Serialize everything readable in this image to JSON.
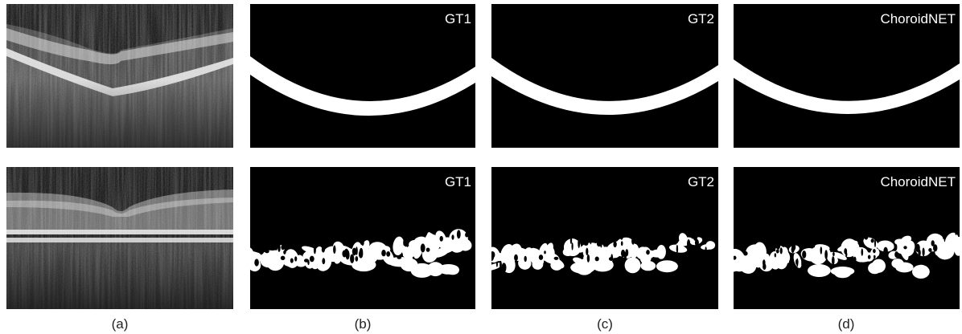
{
  "rows": [
    {
      "overlays": [
        "GT1",
        "GT2",
        "ChoroidNET"
      ]
    },
    {
      "overlays": [
        "GT1",
        "GT2",
        "ChoroidNET"
      ]
    }
  ],
  "captions": [
    "(a)",
    "(b)",
    "(c)",
    "(d)"
  ]
}
